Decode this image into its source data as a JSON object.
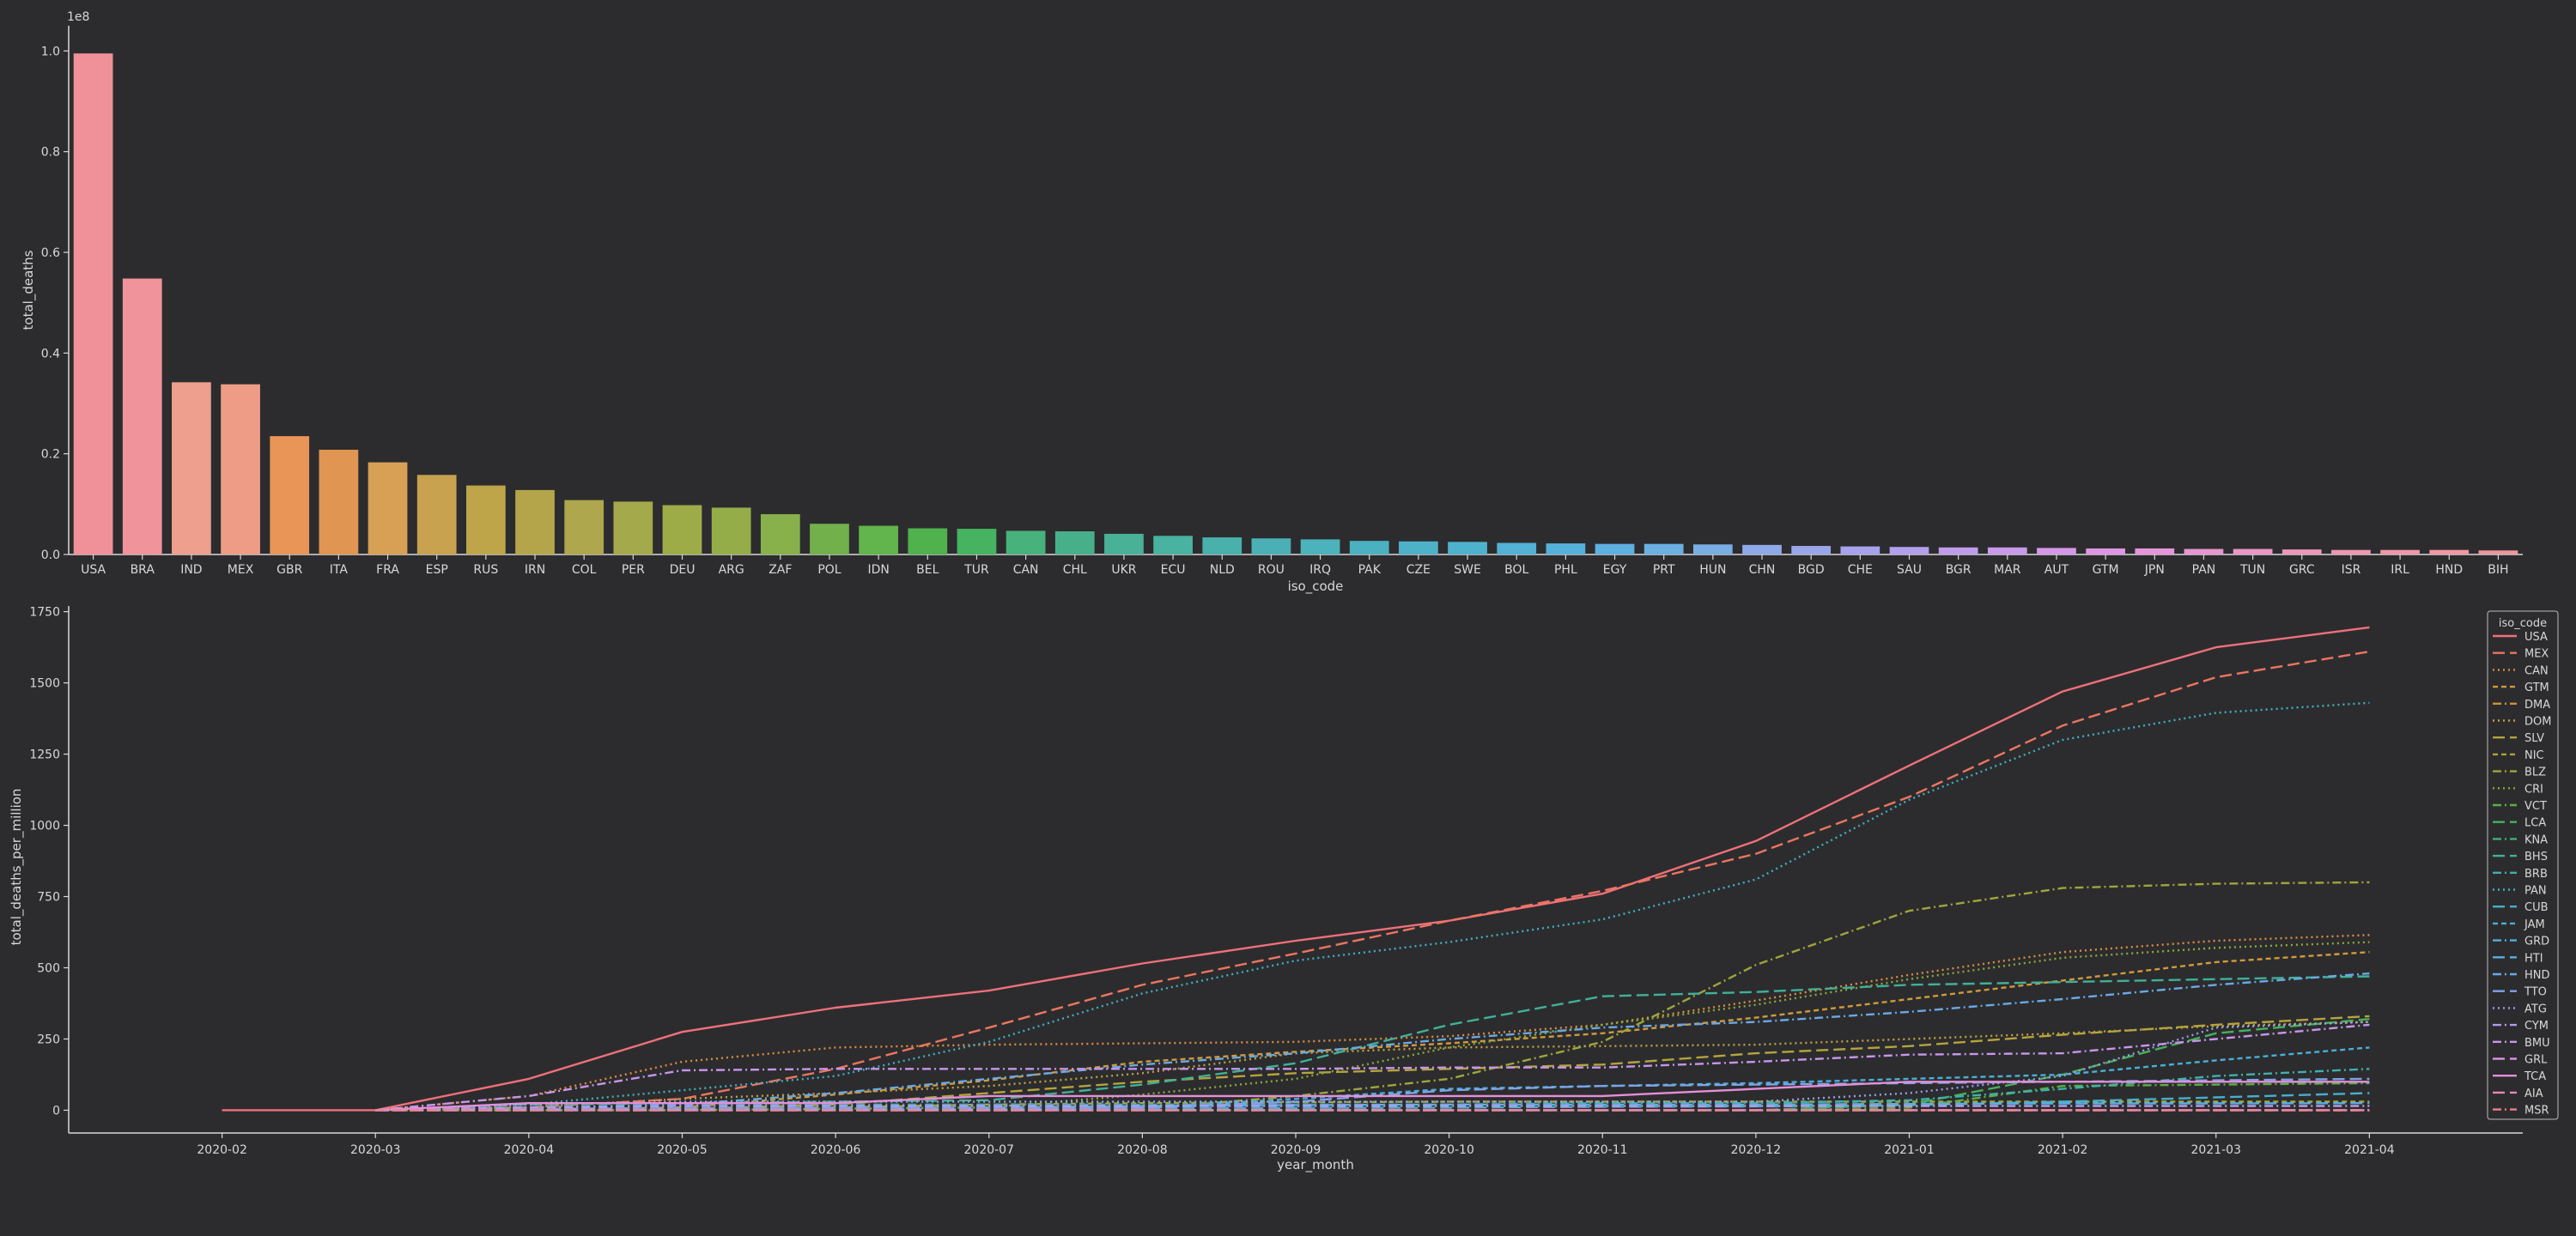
{
  "chart_data": [
    {
      "type": "bar",
      "xlabel": "iso_code",
      "ylabel": "total_deaths",
      "offset_text": "1e8",
      "ylim": [
        0,
        1.05
      ],
      "y_ticks": [
        0.0,
        0.2,
        0.4,
        0.6,
        0.8,
        1.0
      ],
      "y_tick_labels": [
        "0.0",
        "0.2",
        "0.4",
        "0.6",
        "0.8",
        "1.0"
      ],
      "value_scale": 100000000.0,
      "grid": false,
      "categories": [
        "USA",
        "BRA",
        "IND",
        "MEX",
        "GBR",
        "ITA",
        "FRA",
        "ESP",
        "RUS",
        "IRN",
        "COL",
        "PER",
        "DEU",
        "ARG",
        "ZAF",
        "POL",
        "IDN",
        "BEL",
        "TUR",
        "CAN",
        "CHL",
        "UKR",
        "ECU",
        "NLD",
        "ROU",
        "IRQ",
        "PAK",
        "CZE",
        "SWE",
        "BOL",
        "PHL",
        "EGY",
        "PRT",
        "HUN",
        "CHN",
        "BGD",
        "CHE",
        "SAU",
        "BGR",
        "MAR",
        "AUT",
        "GTM",
        "JPN",
        "PAN",
        "TUN",
        "GRC",
        "ISR",
        "IRL",
        "HND",
        "BIH"
      ],
      "values": [
        0.995,
        0.548,
        0.342,
        0.338,
        0.235,
        0.208,
        0.183,
        0.158,
        0.137,
        0.128,
        0.108,
        0.105,
        0.098,
        0.093,
        0.08,
        0.061,
        0.057,
        0.052,
        0.051,
        0.047,
        0.046,
        0.041,
        0.037,
        0.034,
        0.032,
        0.03,
        0.027,
        0.026,
        0.025,
        0.023,
        0.022,
        0.021,
        0.021,
        0.02,
        0.019,
        0.017,
        0.016,
        0.015,
        0.014,
        0.014,
        0.013,
        0.012,
        0.012,
        0.011,
        0.011,
        0.01,
        0.009,
        0.009,
        0.009,
        0.008
      ],
      "colors": [
        "#f0919a",
        "#f0939b",
        "#ef9f8e",
        "#ee9c86",
        "#e89557",
        "#e09553",
        "#d8a055",
        "#c9a250",
        "#bea54a",
        "#b4a54b",
        "#aea74d",
        "#a4a94b",
        "#9eac48",
        "#95ad48",
        "#88b04b",
        "#72b04c",
        "#62b44c",
        "#4fb24c",
        "#45b35f",
        "#47b27c",
        "#47b08a",
        "#49b196",
        "#49b2a0",
        "#4ab0ab",
        "#4ab0b6",
        "#4cb2bb",
        "#4bb1c1",
        "#4db1c7",
        "#4fb2cd",
        "#52b1d5",
        "#55b1db",
        "#5db0e0",
        "#6bb0e1",
        "#78aee4",
        "#8ea9e8",
        "#9aa6ea",
        "#a6a3ec",
        "#b2a0ec",
        "#bf9deb",
        "#c89aea",
        "#d598e8",
        "#de96e4",
        "#e596db",
        "#e796d1",
        "#ea96c6",
        "#ec97bc",
        "#ee97b1",
        "#ef97a8",
        "#f097a2",
        "#f0979e"
      ]
    },
    {
      "type": "line",
      "xlabel": "year_month",
      "ylabel": "total_deaths_per_million",
      "x": [
        "2020-02",
        "2020-03",
        "2020-04",
        "2020-05",
        "2020-06",
        "2020-07",
        "2020-08",
        "2020-09",
        "2020-10",
        "2020-11",
        "2020-12",
        "2021-01",
        "2021-02",
        "2021-03",
        "2021-04"
      ],
      "xlim": [
        "2020-01",
        "2021-05"
      ],
      "ylim": [
        -80,
        1770
      ],
      "y_ticks": [
        0,
        250,
        500,
        750,
        1000,
        1250,
        1500,
        1750
      ],
      "grid": false,
      "legend": {
        "title": "iso_code",
        "placement": "right"
      },
      "series": [
        {
          "name": "USA",
          "color": "#f0707a",
          "dash": "solid",
          "values": [
            0,
            0,
            110,
            275,
            360,
            420,
            515,
            595,
            665,
            760,
            945,
            1210,
            1470,
            1625,
            1695
          ]
        },
        {
          "name": "MEX",
          "color": "#ec7560",
          "dash": "long",
          "values": [
            null,
            0,
            10,
            40,
            145,
            290,
            440,
            550,
            665,
            770,
            900,
            1100,
            1350,
            1520,
            1610
          ]
        },
        {
          "name": "CAN",
          "color": "#de8c40",
          "dash": "dot",
          "values": [
            null,
            0,
            50,
            170,
            220,
            230,
            235,
            240,
            260,
            300,
            385,
            475,
            555,
            595,
            615
          ]
        },
        {
          "name": "GTM",
          "color": "#d09a3c",
          "dash": "shortdash",
          "values": [
            null,
            0,
            0,
            10,
            55,
            105,
            170,
            205,
            235,
            270,
            325,
            390,
            455,
            520,
            555
          ]
        },
        {
          "name": "DMA",
          "color": "#cf8f3a",
          "dash": "dashdot",
          "values": [
            null,
            0,
            0,
            0,
            0,
            0,
            0,
            0,
            0,
            0,
            0,
            0,
            0,
            0,
            0
          ]
        },
        {
          "name": "DOM",
          "color": "#c0a042",
          "dash": "dot",
          "values": [
            null,
            0,
            10,
            40,
            60,
            85,
            130,
            200,
            220,
            225,
            230,
            250,
            270,
            295,
            310
          ]
        },
        {
          "name": "SLV",
          "color": "#b4a43c",
          "dash": "long",
          "values": [
            null,
            0,
            0,
            5,
            20,
            60,
            100,
            130,
            145,
            160,
            200,
            225,
            265,
            300,
            330
          ]
        },
        {
          "name": "NIC",
          "color": "#a8a63a",
          "dash": "shortdash",
          "values": [
            null,
            0,
            0,
            5,
            10,
            20,
            25,
            28,
            30,
            30,
            30,
            30,
            30,
            30,
            30
          ]
        },
        {
          "name": "BLZ",
          "color": "#9ea63a",
          "dash": "dashdot",
          "values": [
            null,
            0,
            0,
            0,
            0,
            0,
            5,
            50,
            110,
            240,
            510,
            700,
            780,
            795,
            800
          ]
        },
        {
          "name": "CRI",
          "color": "#8ca83c",
          "dash": "dot",
          "values": [
            null,
            0,
            0,
            0,
            5,
            10,
            55,
            110,
            220,
            300,
            370,
            460,
            535,
            570,
            590
          ]
        },
        {
          "name": "VCT",
          "color": "#58b043",
          "dash": "dashdot",
          "values": [
            null,
            0,
            0,
            0,
            0,
            0,
            0,
            0,
            0,
            0,
            0,
            9,
            85,
            90,
            95
          ]
        },
        {
          "name": "LCA",
          "color": "#45b25a",
          "dash": "long",
          "values": [
            null,
            0,
            0,
            0,
            0,
            0,
            0,
            0,
            0,
            0,
            0,
            20,
            125,
            270,
            320
          ]
        },
        {
          "name": "KNA",
          "color": "#43b07c",
          "dash": "dashdot",
          "values": [
            null,
            0,
            0,
            0,
            0,
            0,
            0,
            0,
            0,
            0,
            0,
            0,
            0,
            0,
            0
          ]
        },
        {
          "name": "BHS",
          "color": "#40b197",
          "dash": "long",
          "values": [
            null,
            0,
            20,
            25,
            30,
            35,
            90,
            165,
            300,
            400,
            415,
            440,
            450,
            460,
            470
          ]
        },
        {
          "name": "BRB",
          "color": "#3fb0ab",
          "dash": "dashdot",
          "values": [
            null,
            0,
            10,
            20,
            20,
            20,
            20,
            20,
            20,
            25,
            25,
            35,
            75,
            120,
            145
          ]
        },
        {
          "name": "PAN",
          "color": "#40b0bf",
          "dash": "dot",
          "values": [
            null,
            0,
            20,
            70,
            120,
            240,
            410,
            525,
            590,
            670,
            810,
            1090,
            1300,
            1395,
            1430
          ]
        },
        {
          "name": "CUB",
          "color": "#46b0cc",
          "dash": "long",
          "values": [
            null,
            0,
            5,
            7,
            8,
            8,
            8,
            8,
            9,
            12,
            13,
            18,
            30,
            45,
            60
          ]
        },
        {
          "name": "JAM",
          "color": "#4aafd6",
          "dash": "shortdash",
          "values": [
            null,
            0,
            2,
            3,
            4,
            4,
            10,
            40,
            75,
            85,
            95,
            110,
            125,
            175,
            220
          ]
        },
        {
          "name": "GRD",
          "color": "#4fb2dd",
          "dash": "dashdot",
          "values": [
            null,
            0,
            0,
            0,
            0,
            0,
            0,
            0,
            0,
            0,
            0,
            0,
            0,
            0,
            0
          ]
        },
        {
          "name": "HTI",
          "color": "#5aaee0",
          "dash": "long",
          "values": [
            null,
            0,
            1,
            3,
            7,
            10,
            15,
            18,
            20,
            20,
            20,
            22,
            24,
            24,
            25
          ]
        },
        {
          "name": "HND",
          "color": "#6aa9e3",
          "dash": "dashdot",
          "values": [
            null,
            0,
            5,
            20,
            60,
            110,
            160,
            200,
            250,
            290,
            310,
            345,
            390,
            440,
            480
          ]
        },
        {
          "name": "TTO",
          "color": "#7ea4e8",
          "dash": "long",
          "values": [
            null,
            0,
            5,
            6,
            6,
            6,
            8,
            30,
            70,
            85,
            90,
            95,
            100,
            105,
            110
          ]
        },
        {
          "name": "ATG",
          "color": "#9a9eea",
          "dash": "dot",
          "values": [
            null,
            0,
            20,
            30,
            30,
            30,
            30,
            30,
            30,
            30,
            30,
            60,
            120,
            290,
            310
          ]
        },
        {
          "name": "CYM",
          "color": "#b29bec",
          "dash": "dashdot",
          "values": [
            null,
            0,
            10,
            15,
            15,
            15,
            15,
            15,
            15,
            15,
            15,
            15,
            15,
            15,
            15
          ]
        },
        {
          "name": "BMU",
          "color": "#c896eb",
          "dash": "dashdot",
          "values": [
            null,
            0,
            50,
            140,
            145,
            145,
            145,
            145,
            150,
            150,
            170,
            195,
            200,
            250,
            300
          ]
        },
        {
          "name": "GRL",
          "color": "#db8ee6",
          "dash": "long",
          "values": [
            null,
            0,
            0,
            0,
            0,
            0,
            0,
            0,
            0,
            0,
            0,
            0,
            0,
            0,
            0
          ]
        },
        {
          "name": "TCA",
          "color": "#e58fd8",
          "dash": "solid",
          "values": [
            null,
            0,
            25,
            25,
            25,
            50,
            50,
            50,
            50,
            50,
            75,
            100,
            100,
            100,
            100
          ]
        },
        {
          "name": "AIA",
          "color": "#eb86b8",
          "dash": "long",
          "values": [
            null,
            0,
            0,
            0,
            0,
            0,
            0,
            0,
            0,
            0,
            0,
            0,
            0,
            0,
            0
          ]
        },
        {
          "name": "MSR",
          "color": "#ef7e8e",
          "dash": "dashdot",
          "values": [
            null,
            0,
            0,
            0,
            0,
            0,
            0,
            0,
            0,
            0,
            0,
            0,
            0,
            0,
            0
          ]
        }
      ]
    }
  ]
}
